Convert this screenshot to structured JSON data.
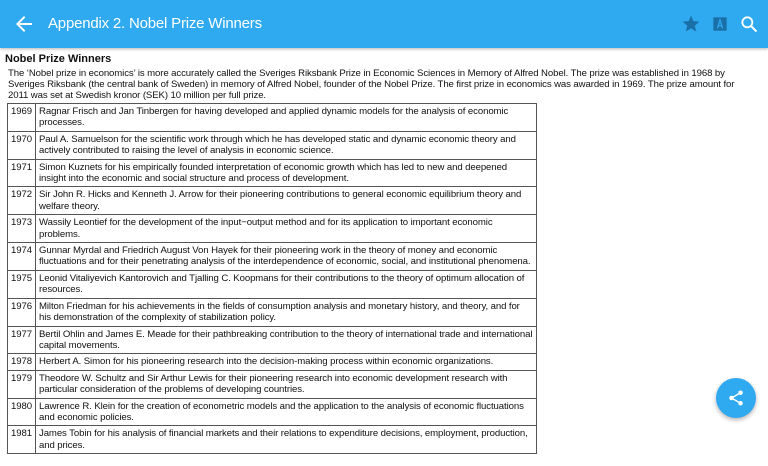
{
  "appbar": {
    "title": "Appendix 2. Nobel Prize Winners",
    "icons": [
      "back-arrow-icon",
      "star-icon",
      "font-icon",
      "search-icon"
    ],
    "color": "#2fa9f0",
    "icon_dark_color": "#1a6fa8"
  },
  "content": {
    "heading": "Nobel Prize Winners",
    "intro": "The ‘Nobel prize in economics’ is more accurately called the Sveriges Riksbank Prize in Economic Sciences in Memory of Alfred Nobel. The prize was established in 1968 by Sveriges Riksbank (the central bank of Sweden) in memory of Alfred Nobel, founder of the Nobel Prize. The first prize in economics was awarded in 1969. The prize amount for 2011 was set at Swedish kronor (SEK) 10 million per full prize.",
    "rows": [
      {
        "year": "1969",
        "text": "Ragnar Frisch and Jan Tinbergen for having developed and applied dynamic models for the analysis of economic processes."
      },
      {
        "year": "1970",
        "text": "Paul A. Samuelson for the scientific work through which he has developed static and dynamic economic theory and actively contributed to raising the level of analysis in economic science."
      },
      {
        "year": "1971",
        "text": "Simon Kuznets for his empirically founded interpretation of economic growth which has led to new and deepened insight into the economic and social structure and process of development."
      },
      {
        "year": "1972",
        "text": "Sir John R. Hicks and Kenneth J. Arrow for their pioneering contributions to general economic equilibrium theory and welfare theory."
      },
      {
        "year": "1973",
        "text": "Wassily Leontief for the development of the input−output method and for its application to important economic problems."
      },
      {
        "year": "1974",
        "text": "Gunnar Myrdal and Friedrich August Von Hayek for their pioneering work in the theory of money and economic fluctuations and for their penetrating analysis of the interdependence of economic, social, and institutional phenomena."
      },
      {
        "year": "1975",
        "text": "Leonid Vitaliyevich Kantorovich and Tjalling C. Koopmans for their contributions to the theory of optimum allocation of resources."
      },
      {
        "year": "1976",
        "text": "Milton Friedman for his achievements in the fields of consumption analysis and monetary history, and theory, and for his demonstration of the complexity of stabilization policy."
      },
      {
        "year": "1977",
        "text": "Bertil Ohlin and James E. Meade for their pathbreaking contribution to the theory of international trade and international capital movements."
      },
      {
        "year": "1978",
        "text": "Herbert A. Simon for his pioneering research into the decision-making process within economic organizations."
      },
      {
        "year": "1979",
        "text": "Theodore W. Schultz and Sir Arthur Lewis for their pioneering research into economic development research with particular consideration of the problems of developing countries."
      },
      {
        "year": "1980",
        "text": "Lawrence R. Klein for the creation of econometric models and the application to the analysis of economic fluctuations and economic policies."
      },
      {
        "year": "1981",
        "text": "James Tobin for his analysis of financial markets and their relations to expenditure decisions, employment, production, and prices."
      }
    ]
  },
  "fab": {
    "icon": "share-icon"
  }
}
